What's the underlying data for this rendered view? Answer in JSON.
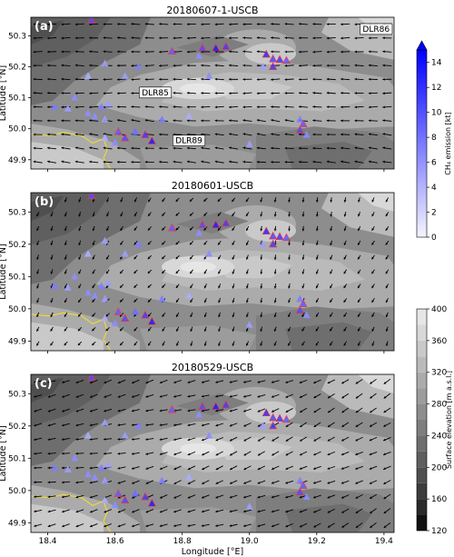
{
  "panels": [
    {
      "letter": "(a)",
      "title": "20180607-1-USCB"
    },
    {
      "letter": "(b)",
      "title": "20180601-USCB"
    },
    {
      "letter": "(c)",
      "title": "20180529-USCB"
    }
  ],
  "axes": {
    "xlabel": "Longitude [°E]",
    "ylabel": "Latitude [°N]",
    "xlim": [
      18.35,
      19.43
    ],
    "ylim": [
      49.87,
      50.36
    ],
    "xticks": [
      "18.4",
      "18.6",
      "18.8",
      "19.0",
      "19.2",
      "19.4"
    ],
    "xtick_values": [
      18.4,
      18.6,
      18.8,
      19.0,
      19.2,
      19.4
    ],
    "yticks": [
      "49.9",
      "50.0",
      "50.1",
      "50.2",
      "50.3"
    ],
    "ytick_values": [
      49.9,
      50.0,
      50.1,
      50.2,
      50.3
    ]
  },
  "annotations": [
    {
      "text": "DLR85",
      "lon": 18.72,
      "lat": 50.117
    },
    {
      "text": "DLR89",
      "lon": 18.82,
      "lat": 49.962
    },
    {
      "text": "DLR86",
      "lon": 19.42,
      "lat": 50.322
    }
  ],
  "colorbars": {
    "emission": {
      "label": "CH₄ emission [kt]",
      "range": [
        0,
        15
      ],
      "ticks": [
        "0",
        "2",
        "4",
        "6",
        "8",
        "10",
        "12",
        "14"
      ],
      "tick_values": [
        0,
        2,
        4,
        6,
        8,
        10,
        12,
        14
      ],
      "extend": "max",
      "color_low": "#f4f4ff",
      "color_high": "#0000ff"
    },
    "elevation": {
      "label": "Surface elevation [m a.s.l.]",
      "range": [
        120,
        400
      ],
      "ticks": [
        "120",
        "160",
        "200",
        "240",
        "280",
        "320",
        "360",
        "400"
      ],
      "tick_values": [
        120,
        160,
        200,
        240,
        280,
        320,
        360,
        400
      ],
      "levels": [
        120,
        140,
        160,
        180,
        200,
        220,
        240,
        260,
        280,
        300,
        320,
        340,
        360,
        380,
        400
      ],
      "colors": [
        "#111111",
        "#2a2a2a",
        "#3d3d3d",
        "#4f4f4f",
        "#5f5f5f",
        "#6e6e6e",
        "#7e7e7e",
        "#8d8d8d",
        "#9c9c9c",
        "#ababab",
        "#bababa",
        "#c9c9c9",
        "#d8d8d8",
        "#e6e6e6"
      ]
    }
  },
  "colors": {
    "border_line": "#e8d83a",
    "marker_edge": "#ff3333"
  },
  "chart_data": {
    "type": "scatter",
    "x_label": "Longitude [°E]",
    "y_label": "Latitude [°N]",
    "sources": [
      {
        "lon": 18.53,
        "lat": 50.35,
        "v": 10
      },
      {
        "lon": 18.77,
        "lat": 50.25,
        "v": 9
      },
      {
        "lon": 18.9,
        "lat": 50.26,
        "v": 13
      },
      {
        "lon": 18.86,
        "lat": 50.26,
        "v": 10
      },
      {
        "lon": 18.93,
        "lat": 50.265,
        "v": 11
      },
      {
        "lon": 18.85,
        "lat": 50.235,
        "v": 6
      },
      {
        "lon": 19.05,
        "lat": 50.24,
        "v": 12
      },
      {
        "lon": 19.07,
        "lat": 50.225,
        "v": 10
      },
      {
        "lon": 19.09,
        "lat": 50.223,
        "v": 11
      },
      {
        "lon": 19.11,
        "lat": 50.22,
        "v": 9
      },
      {
        "lon": 19.07,
        "lat": 50.2,
        "v": 11
      },
      {
        "lon": 19.04,
        "lat": 50.2,
        "v": 5
      },
      {
        "lon": 18.88,
        "lat": 50.17,
        "v": 6
      },
      {
        "lon": 18.57,
        "lat": 50.21,
        "v": 5
      },
      {
        "lon": 18.67,
        "lat": 50.2,
        "v": 7
      },
      {
        "lon": 18.63,
        "lat": 50.17,
        "v": 5
      },
      {
        "lon": 18.52,
        "lat": 50.17,
        "v": 4
      },
      {
        "lon": 18.48,
        "lat": 50.1,
        "v": 6
      },
      {
        "lon": 18.42,
        "lat": 50.07,
        "v": 7
      },
      {
        "lon": 18.46,
        "lat": 50.065,
        "v": 5
      },
      {
        "lon": 18.52,
        "lat": 50.05,
        "v": 6
      },
      {
        "lon": 18.56,
        "lat": 50.07,
        "v": 7
      },
      {
        "lon": 18.58,
        "lat": 50.08,
        "v": 5
      },
      {
        "lon": 18.54,
        "lat": 50.04,
        "v": 6
      },
      {
        "lon": 18.57,
        "lat": 50.03,
        "v": 5
      },
      {
        "lon": 18.61,
        "lat": 49.99,
        "v": 9
      },
      {
        "lon": 18.63,
        "lat": 49.97,
        "v": 10
      },
      {
        "lon": 18.66,
        "lat": 49.99,
        "v": 8
      },
      {
        "lon": 18.69,
        "lat": 49.98,
        "v": 11
      },
      {
        "lon": 18.71,
        "lat": 49.96,
        "v": 13
      },
      {
        "lon": 18.74,
        "lat": 50.03,
        "v": 7
      },
      {
        "lon": 18.82,
        "lat": 50.04,
        "v": 4
      },
      {
        "lon": 18.57,
        "lat": 49.97,
        "v": 4
      },
      {
        "lon": 18.6,
        "lat": 49.955,
        "v": 6
      },
      {
        "lon": 19.0,
        "lat": 49.95,
        "v": 5
      },
      {
        "lon": 19.15,
        "lat": 50.03,
        "v": 7
      },
      {
        "lon": 19.16,
        "lat": 50.015,
        "v": 9
      },
      {
        "lon": 19.15,
        "lat": 49.995,
        "v": 10
      },
      {
        "lon": 19.17,
        "lat": 49.98,
        "v": 6
      }
    ]
  }
}
